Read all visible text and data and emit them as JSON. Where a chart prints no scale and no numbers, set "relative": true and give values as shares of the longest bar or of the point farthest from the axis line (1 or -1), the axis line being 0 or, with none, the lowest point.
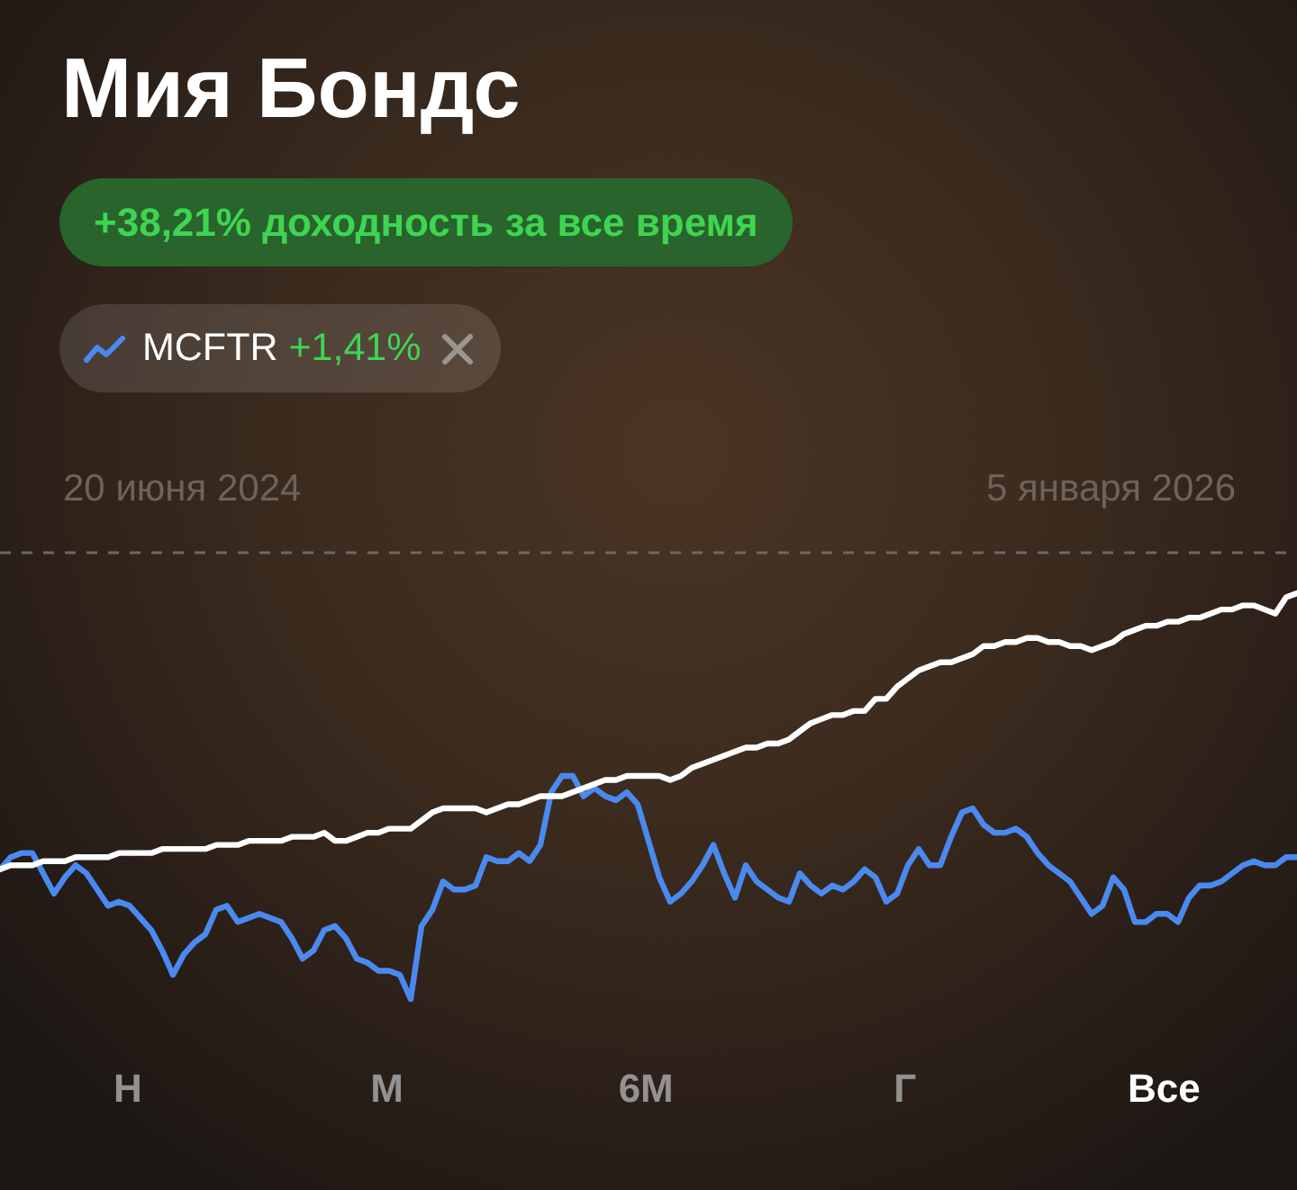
{
  "chart_data": {
    "type": "line",
    "title": "Мия Бондс",
    "subtitle": "+38,21% доходность за все время",
    "categories": [
      null,
      null,
      null,
      null,
      null,
      null,
      null,
      null,
      null,
      null,
      null,
      null,
      null,
      null,
      null,
      null,
      null,
      null,
      null,
      null,
      null,
      null,
      null,
      null,
      null,
      null,
      null,
      null,
      null,
      null,
      null,
      null,
      null,
      null,
      null,
      null,
      null,
      null,
      null,
      null,
      null,
      null,
      null,
      null,
      null,
      null,
      null,
      null,
      null,
      null,
      null,
      null,
      null,
      null,
      null,
      null,
      null,
      null,
      null,
      null,
      null,
      null,
      null,
      null,
      null,
      null,
      null,
      null,
      null,
      null,
      null,
      null,
      null,
      null,
      null,
      null,
      null,
      null,
      null,
      null,
      null,
      null,
      null,
      null,
      null,
      null,
      null,
      null,
      null,
      null,
      null,
      null,
      null,
      null,
      null,
      null,
      null,
      null,
      null,
      null,
      null,
      null,
      null,
      null,
      null,
      null,
      null,
      null,
      null,
      null,
      null,
      null,
      null,
      null,
      null,
      null,
      null,
      null,
      null,
      null,
      null
    ],
    "series": [
      {
        "color": "#ffffff",
        "values": [
          0.32,
          0.33,
          0.33,
          0.33,
          0.34,
          0.34,
          0.34,
          0.35,
          0.35,
          0.35,
          0.35,
          0.36,
          0.36,
          0.36,
          0.36,
          0.37,
          0.37,
          0.37,
          0.37,
          0.37,
          0.38,
          0.38,
          0.38,
          0.39,
          0.39,
          0.39,
          0.39,
          0.4,
          0.4,
          0.4,
          0.41,
          0.39,
          0.39,
          0.4,
          0.41,
          0.41,
          0.42,
          0.42,
          0.42,
          0.44,
          0.46,
          0.47,
          0.47,
          0.47,
          0.47,
          0.46,
          0.47,
          0.48,
          0.48,
          0.49,
          0.5,
          0.5,
          0.5,
          0.51,
          0.52,
          0.53,
          0.54,
          0.54,
          0.55,
          0.55,
          0.55,
          0.55,
          0.54,
          0.55,
          0.57,
          0.58,
          0.59,
          0.6,
          0.61,
          0.62,
          0.62,
          0.63,
          0.63,
          0.64,
          0.66,
          0.68,
          0.69,
          0.7,
          0.7,
          0.71,
          0.71,
          0.74,
          0.74,
          0.77,
          0.79,
          0.81,
          0.82,
          0.83,
          0.83,
          0.84,
          0.85,
          0.87,
          0.87,
          0.88,
          0.88,
          0.89,
          0.89,
          0.88,
          0.88,
          0.87,
          0.87,
          0.86,
          0.87,
          0.88,
          0.9,
          0.91,
          0.92,
          0.92,
          0.93,
          0.93,
          0.94,
          0.94,
          0.95,
          0.96,
          0.96,
          0.97,
          0.97,
          0.96,
          0.95,
          0.99,
          1
        ]
      },
      {
        "name": "MCFTR",
        "color": "#4a8af0",
        "values": [
          0.32,
          0.35,
          0.36,
          0.36,
          0.31,
          0.26,
          0.3,
          0.33,
          0.31,
          0.27,
          0.23,
          0.24,
          0.23,
          0.2,
          0.17,
          0.12,
          0.06,
          0.11,
          0.14,
          0.16,
          0.22,
          0.23,
          0.19,
          0.2,
          0.21,
          0.2,
          0.19,
          0.15,
          0.1,
          0.12,
          0.17,
          0.18,
          0.15,
          0.1,
          0.09,
          0.07,
          0.07,
          0.06,
          0,
          0.18,
          0.22,
          0.29,
          0.27,
          0.27,
          0.28,
          0.35,
          0.34,
          0.34,
          0.36,
          0.34,
          0.38,
          0.51,
          0.55,
          0.55,
          0.5,
          0.52,
          0.5,
          0.49,
          0.51,
          0.48,
          0.39,
          0.3,
          0.24,
          0.26,
          0.29,
          0.33,
          0.38,
          0.31,
          0.25,
          0.33,
          0.29,
          0.27,
          0.25,
          0.24,
          0.31,
          0.28,
          0.26,
          0.28,
          0.27,
          0.29,
          0.32,
          0.3,
          0.24,
          0.26,
          0.33,
          0.37,
          0.33,
          0.33,
          0.4,
          0.46,
          0.47,
          0.43,
          0.41,
          0.41,
          0.42,
          0.4,
          0.36,
          0.33,
          0.31,
          0.29,
          0.25,
          0.21,
          0.23,
          0.3,
          0.27,
          0.19,
          0.19,
          0.21,
          0.21,
          0.19,
          0.25,
          0.28,
          0.28,
          0.29,
          0.31,
          0.33,
          0.34,
          0.33,
          0.33,
          0.35,
          0.35
        ]
      }
    ],
    "relative": true,
    "legend": "top left",
    "marker": "none",
    "line_style": "solid",
    "ref_lines": [
      {
        "axis": "y",
        "value": 1.1,
        "color": "#6e6863",
        "line_style": "dashed"
      }
    ],
    "annotations": [
      "+1,41%",
      "20 июня 2024",
      "5 января 2026",
      "Н",
      "М",
      "6М",
      "Г",
      "Все"
    ]
  }
}
